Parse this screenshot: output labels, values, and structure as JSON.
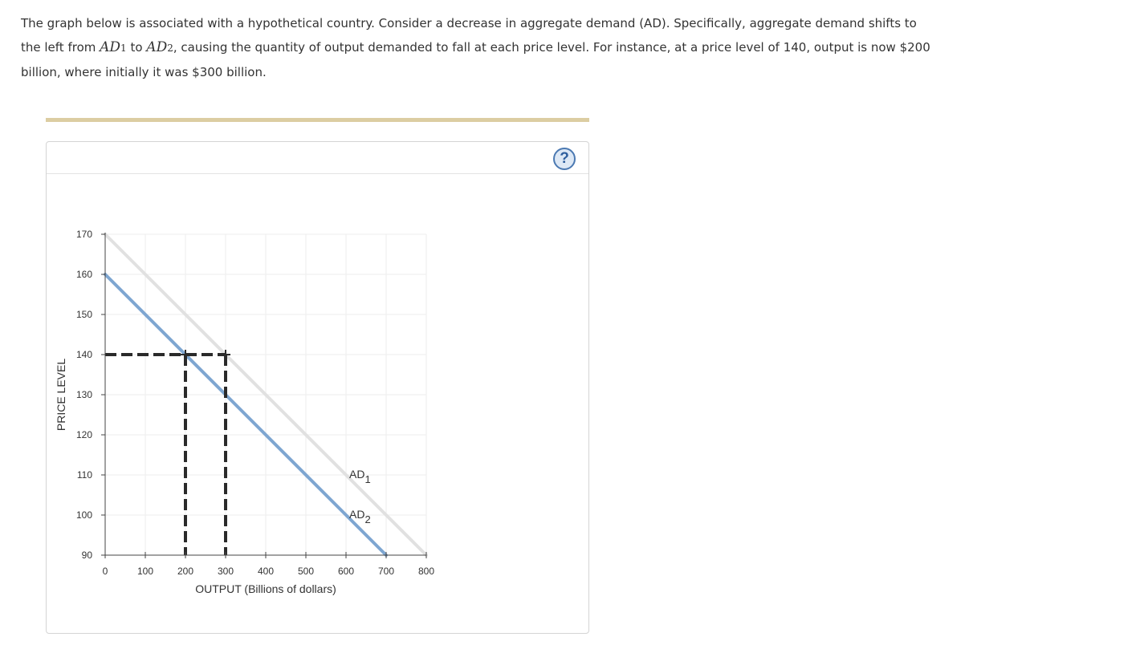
{
  "question": {
    "part1": "The graph below is associated with a hypothetical country. Consider a decrease in aggregate demand (AD). Specifically, aggregate demand shifts to the left from ",
    "ad1_base": "AD",
    "ad1_sub": "1",
    "part2": " to ",
    "ad2_base": "AD",
    "ad2_sub": "2",
    "part3": ", causing the quantity of output demanded to fall at each price level. For instance, at a price level of 140, output is now $200 billion, where initially it was $300 billion."
  },
  "help": {
    "label": "?"
  },
  "colors": {
    "ad1": "#e1e1e1",
    "ad2": "#7ea6d1",
    "dashed": "#2a2a2a",
    "grid": "#eeeeee",
    "divider": "#dccda2",
    "help_border": "#4b79b2"
  },
  "chart_data": {
    "type": "line",
    "xlabel": "OUTPUT (Billions of dollars)",
    "ylabel": "PRICE LEVEL",
    "xlim": [
      0,
      800
    ],
    "ylim": [
      90,
      170
    ],
    "xticks": [
      0,
      100,
      200,
      300,
      400,
      500,
      600,
      700,
      800
    ],
    "yticks": [
      90,
      100,
      110,
      120,
      130,
      140,
      150,
      160,
      170
    ],
    "grid": true,
    "series": [
      {
        "name": "AD1",
        "label_base": "AD",
        "label_sub": "1",
        "label_at": [
          600,
          110
        ],
        "color": "#e1e1e1",
        "points": [
          [
            0,
            170
          ],
          [
            800,
            90
          ]
        ]
      },
      {
        "name": "AD2",
        "label_base": "AD",
        "label_sub": "2",
        "label_at": [
          600,
          100
        ],
        "color": "#7ea6d1",
        "points": [
          [
            0,
            160
          ],
          [
            700,
            90
          ]
        ]
      }
    ],
    "reference_points": [
      {
        "x": 200,
        "y": 140
      },
      {
        "x": 300,
        "y": 140
      }
    ]
  }
}
